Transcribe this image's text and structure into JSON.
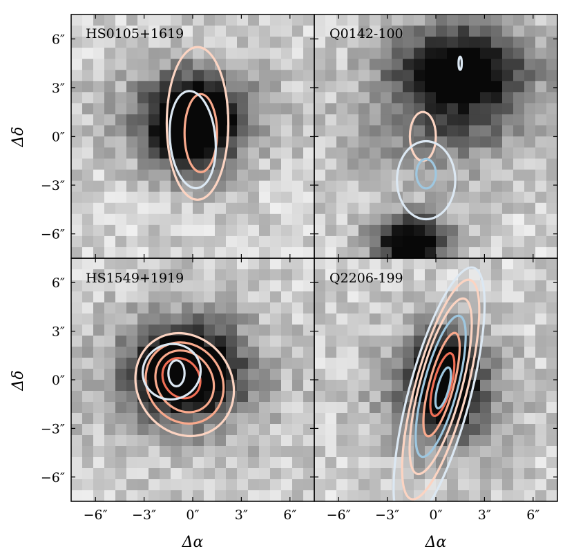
{
  "figure": {
    "xlabel": "Δα",
    "ylabel": "Δδ",
    "x_tick_labels": [
      "−6″",
      "−3″",
      "0″",
      "3″",
      "6″"
    ],
    "y_tick_labels": [
      "6″",
      "3″",
      "0″",
      "−3″",
      "−6″"
    ]
  },
  "colors": {
    "contour_light_red": "#fcd4c2",
    "contour_mid_red": "#f9a98c",
    "contour_red": "#f06e55",
    "contour_light_blue": "#dce8f3",
    "contour_blue": "#9ec7e0",
    "frame": "#000000"
  },
  "chart_data": [
    {
      "type": "image_with_contours",
      "title": "HS0105+1619",
      "xlabel": "",
      "ylabel": "Δδ",
      "xlim": [
        -7.5,
        7.5
      ],
      "ylim": [
        -7.5,
        7.5
      ],
      "x_ticks": [
        -6,
        -3,
        0,
        3,
        6
      ],
      "y_ticks": [
        -6,
        -3,
        0,
        3,
        6
      ],
      "image_features": [
        {
          "cx": 0,
          "cy": 0.5,
          "rx": 2.5,
          "ry": 3,
          "darkness": 1.0
        },
        {
          "cx": 0,
          "cy": 1.5,
          "rx": 5,
          "ry": 3,
          "darkness": 0.45
        }
      ],
      "contours": [
        {
          "color": "contour_light_red",
          "cx": 0.3,
          "cy": 0.8,
          "rx": 1.9,
          "ry": 4.7,
          "rot": 0
        },
        {
          "color": "contour_mid_red",
          "cx": 0.5,
          "cy": 0.2,
          "rx": 1.0,
          "ry": 2.4,
          "rot": 0
        },
        {
          "color": "contour_light_blue",
          "cx": 0.0,
          "cy": -0.2,
          "rx": 1.4,
          "ry": 3.0,
          "rot": -5
        }
      ]
    },
    {
      "type": "image_with_contours",
      "title": "Q0142-100",
      "xlabel": "",
      "ylabel": "",
      "xlim": [
        -7.5,
        7.5
      ],
      "ylim": [
        -7.5,
        7.5
      ],
      "x_ticks": [
        -6,
        -3,
        0,
        3,
        6
      ],
      "y_ticks": [
        -6,
        -3,
        0,
        3,
        6
      ],
      "image_features": [
        {
          "cx": 1.5,
          "cy": 4.0,
          "rx": 4.5,
          "ry": 3.0,
          "darkness": 1.0
        },
        {
          "cx": -1.5,
          "cy": -6.5,
          "rx": 2.5,
          "ry": 1.8,
          "darkness": 1.0
        },
        {
          "cx": 0,
          "cy": 0,
          "rx": 6,
          "ry": 3,
          "darkness": 0.3
        }
      ],
      "contours": [
        {
          "color": "contour_light_red",
          "cx": -0.8,
          "cy": 0.0,
          "rx": 0.8,
          "ry": 1.5,
          "rot": 0
        },
        {
          "color": "contour_light_blue",
          "cx": -0.6,
          "cy": -2.7,
          "rx": 1.8,
          "ry": 2.4,
          "rot": 0
        },
        {
          "color": "contour_blue",
          "cx": -0.6,
          "cy": -2.3,
          "rx": 0.6,
          "ry": 0.9,
          "rot": 0
        },
        {
          "color": "contour_light_blue",
          "cx": 1.5,
          "cy": 4.5,
          "rx": 0.1,
          "ry": 0.4,
          "rot": 0
        }
      ]
    },
    {
      "type": "image_with_contours",
      "title": "HS1549+1919",
      "xlabel": "Δα",
      "ylabel": "Δδ",
      "xlim": [
        -7.5,
        7.5
      ],
      "ylim": [
        -7.5,
        7.5
      ],
      "x_ticks": [
        -6,
        -3,
        0,
        3,
        6
      ],
      "y_ticks": [
        -6,
        -3,
        0,
        3,
        6
      ],
      "image_features": [
        {
          "cx": -0.5,
          "cy": 0.5,
          "rx": 3.0,
          "ry": 2.5,
          "darkness": 1.0
        },
        {
          "cx": -0.3,
          "cy": 0.3,
          "rx": 5.5,
          "ry": 4.5,
          "darkness": 0.4
        }
      ],
      "contours": [
        {
          "color": "contour_light_red",
          "cx": -0.5,
          "cy": -0.3,
          "rx": 2.9,
          "ry": 3.3,
          "rot": -35
        },
        {
          "color": "contour_mid_red",
          "cx": -0.5,
          "cy": -0.2,
          "rx": 2.3,
          "ry": 2.6,
          "rot": -35
        },
        {
          "color": "contour_mid_red",
          "cx": -0.5,
          "cy": -0.1,
          "rx": 1.7,
          "ry": 2.0,
          "rot": -35
        },
        {
          "color": "contour_red",
          "cx": -0.7,
          "cy": 0.1,
          "rx": 1.1,
          "ry": 1.3,
          "rot": -35
        },
        {
          "color": "contour_light_blue",
          "cx": -1.3,
          "cy": 0.5,
          "rx": 1.8,
          "ry": 1.7,
          "rot": -20
        },
        {
          "color": "contour_light_blue",
          "cx": -1.0,
          "cy": 0.4,
          "rx": 0.5,
          "ry": 0.8,
          "rot": 0
        }
      ]
    },
    {
      "type": "image_with_contours",
      "title": "Q2206-199",
      "xlabel": "Δα",
      "ylabel": "",
      "xlim": [
        -7.5,
        7.5
      ],
      "ylim": [
        -7.5,
        7.5
      ],
      "x_ticks": [
        -6,
        -3,
        0,
        3,
        6
      ],
      "y_ticks": [
        -6,
        -3,
        0,
        3,
        6
      ],
      "image_features": [
        {
          "cx": 0.5,
          "cy": 0.0,
          "rx": 2.0,
          "ry": 3.0,
          "darkness": 1.0
        },
        {
          "cx": 0.3,
          "cy": -1.0,
          "rx": 4.5,
          "ry": 4.0,
          "darkness": 0.4
        }
      ],
      "contours": [
        {
          "color": "contour_light_blue",
          "cx": 0.2,
          "cy": -1.0,
          "rx": 1.9,
          "ry": 8.2,
          "rot": 15
        },
        {
          "color": "contour_light_red",
          "cx": 0.3,
          "cy": -0.6,
          "rx": 1.6,
          "ry": 7.0,
          "rot": 15
        },
        {
          "color": "contour_light_red",
          "cx": 0.3,
          "cy": -0.4,
          "rx": 1.3,
          "ry": 5.6,
          "rot": 15
        },
        {
          "color": "contour_blue",
          "cx": 0.3,
          "cy": -0.4,
          "rx": 1.05,
          "ry": 4.5,
          "rot": 15
        },
        {
          "color": "contour_mid_red",
          "cx": 0.35,
          "cy": -0.3,
          "rx": 0.75,
          "ry": 3.3,
          "rot": 15
        },
        {
          "color": "contour_red",
          "cx": 0.4,
          "cy": -0.3,
          "rx": 0.55,
          "ry": 2.0,
          "rot": 15
        },
        {
          "color": "contour_blue",
          "cx": 0.45,
          "cy": -0.5,
          "rx": 0.35,
          "ry": 1.3,
          "rot": 15
        }
      ]
    }
  ]
}
